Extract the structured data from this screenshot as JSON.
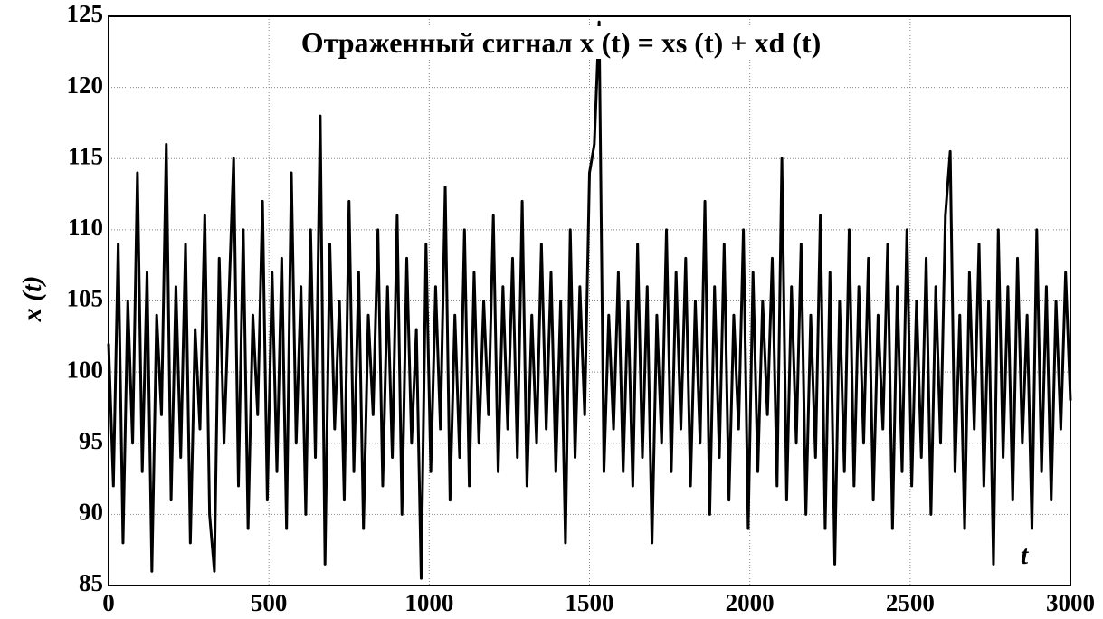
{
  "chart_data": {
    "type": "line",
    "title": "Отраженный сигнал x (t) = xs (t) + xd (t)",
    "y_label": "x (t)",
    "x_label": "t",
    "color": "#000000",
    "grid": true,
    "xlim": [
      0,
      3000
    ],
    "xticks": [
      0,
      500,
      1000,
      1500,
      2000,
      2500,
      3000
    ],
    "ylim": [
      85,
      125
    ],
    "yticks": [
      85,
      90,
      95,
      100,
      105,
      110,
      115,
      120,
      125
    ],
    "x": [
      0,
      15,
      30,
      45,
      60,
      75,
      90,
      105,
      120,
      135,
      150,
      165,
      180,
      195,
      210,
      225,
      240,
      255,
      270,
      285,
      300,
      315,
      330,
      345,
      360,
      375,
      390,
      405,
      420,
      435,
      450,
      465,
      480,
      495,
      510,
      525,
      540,
      555,
      570,
      585,
      600,
      615,
      630,
      645,
      660,
      675,
      690,
      705,
      720,
      735,
      750,
      765,
      780,
      795,
      810,
      825,
      840,
      855,
      870,
      885,
      900,
      915,
      930,
      945,
      960,
      975,
      990,
      1005,
      1020,
      1035,
      1050,
      1065,
      1080,
      1095,
      1110,
      1125,
      1140,
      1155,
      1170,
      1185,
      1200,
      1215,
      1230,
      1245,
      1260,
      1275,
      1290,
      1305,
      1320,
      1335,
      1350,
      1365,
      1380,
      1395,
      1410,
      1425,
      1440,
      1455,
      1470,
      1485,
      1500,
      1515,
      1530,
      1545,
      1560,
      1575,
      1590,
      1605,
      1620,
      1635,
      1650,
      1665,
      1680,
      1695,
      1710,
      1725,
      1740,
      1755,
      1770,
      1785,
      1800,
      1815,
      1830,
      1845,
      1860,
      1875,
      1890,
      1905,
      1920,
      1935,
      1950,
      1965,
      1980,
      1995,
      2010,
      2025,
      2040,
      2055,
      2070,
      2085,
      2100,
      2115,
      2130,
      2145,
      2160,
      2175,
      2190,
      2205,
      2220,
      2235,
      2250,
      2265,
      2280,
      2295,
      2310,
      2325,
      2340,
      2355,
      2370,
      2385,
      2400,
      2415,
      2430,
      2445,
      2460,
      2475,
      2490,
      2505,
      2520,
      2535,
      2550,
      2565,
      2580,
      2595,
      2610,
      2625,
      2640,
      2655,
      2670,
      2685,
      2700,
      2715,
      2730,
      2745,
      2760,
      2775,
      2790,
      2805,
      2820,
      2835,
      2850,
      2865,
      2880,
      2895,
      2910,
      2925,
      2940,
      2955,
      2970,
      2985,
      3000
    ],
    "values": [
      102,
      92,
      109,
      88,
      105,
      95,
      114,
      93,
      107,
      86,
      104,
      97,
      116,
      91,
      106,
      94,
      109,
      88,
      103,
      96,
      111,
      90,
      86,
      108,
      95,
      105,
      115,
      92,
      110,
      89,
      104,
      97,
      112,
      91,
      107,
      93,
      108,
      89,
      114,
      95,
      106,
      90,
      110,
      94,
      118,
      86.5,
      109,
      96,
      105,
      91,
      112,
      93,
      107,
      89,
      104,
      97,
      110,
      92,
      106,
      94,
      111,
      90,
      108,
      95,
      103,
      85.5,
      109,
      93,
      106,
      96,
      113,
      91,
      104,
      94,
      110,
      92,
      107,
      95,
      105,
      97,
      111,
      93,
      106,
      96,
      108,
      94,
      112,
      92,
      104,
      95,
      109,
      96,
      107,
      93,
      105,
      88,
      110,
      94,
      106,
      97,
      114,
      116,
      124.6,
      93,
      104,
      96,
      107,
      93,
      105,
      92,
      109,
      94,
      106,
      88,
      104,
      95,
      110,
      93,
      107,
      96,
      108,
      92,
      105,
      95,
      112,
      90,
      106,
      94,
      109,
      91,
      104,
      96,
      110,
      89,
      107,
      93,
      105,
      97,
      108,
      92,
      115,
      91,
      106,
      95,
      109,
      90,
      104,
      94,
      111,
      89,
      107,
      86.5,
      105,
      93,
      110,
      92,
      106,
      95,
      108,
      91,
      104,
      96,
      109,
      89,
      106,
      93,
      110,
      92,
      105,
      94,
      108,
      90,
      106,
      95,
      111,
      115.5,
      93,
      104,
      89,
      107,
      96,
      109,
      92,
      105,
      86.5,
      110,
      94,
      106,
      91,
      108,
      95,
      104,
      89,
      110,
      93,
      106,
      91,
      105,
      96,
      107,
      98
    ]
  }
}
